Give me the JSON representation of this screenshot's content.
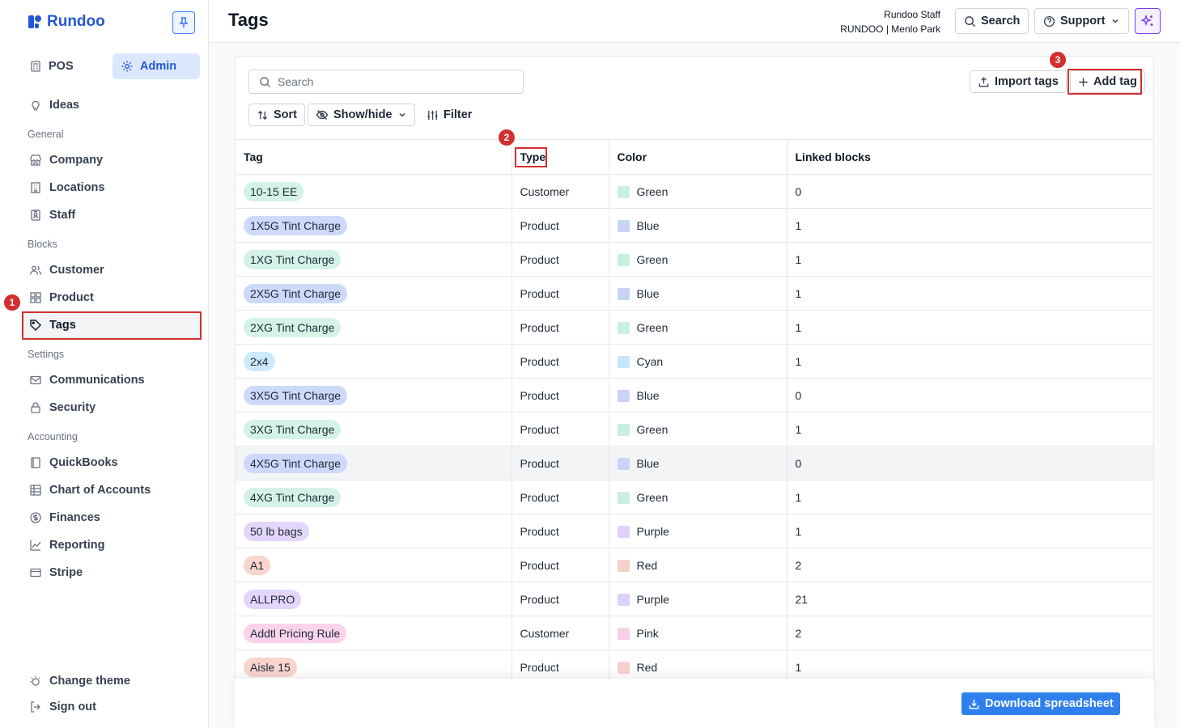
{
  "app": {
    "brand": "Rundoo"
  },
  "modes": {
    "pos": "POS",
    "admin": "Admin"
  },
  "sidebar": {
    "ideas": "Ideas",
    "sections": {
      "general": "General",
      "blocks": "Blocks",
      "settings": "Settings",
      "accounting": "Accounting"
    },
    "items": {
      "company": "Company",
      "locations": "Locations",
      "staff": "Staff",
      "customer": "Customer",
      "product": "Product",
      "tags": "Tags",
      "communications": "Communications",
      "security": "Security",
      "quickbooks": "QuickBooks",
      "chart_of_accounts": "Chart of Accounts",
      "finances": "Finances",
      "reporting": "Reporting",
      "stripe": "Stripe"
    },
    "change_theme": "Change theme",
    "sign_out": "Sign out"
  },
  "header": {
    "title": "Tags",
    "user_name": "Rundoo Staff",
    "user_location": "RUNDOO | Menlo Park",
    "search_label": "Search",
    "support_label": "Support"
  },
  "toolbar": {
    "search_placeholder": "Search",
    "sort": "Sort",
    "show_hide": "Show/hide",
    "filter": "Filter",
    "import_tags": "Import tags",
    "add_tag": "Add tag"
  },
  "annotations": {
    "one": "1",
    "two": "2",
    "three": "3"
  },
  "table": {
    "columns": [
      "Tag",
      "Type",
      "Color",
      "Linked blocks"
    ],
    "rows": [
      {
        "tag": "10-15 EE",
        "type": "Customer",
        "color": "Green",
        "linked": "0"
      },
      {
        "tag": "1X5G Tint Charge",
        "type": "Product",
        "color": "Blue",
        "linked": "1"
      },
      {
        "tag": "1XG Tint Charge",
        "type": "Product",
        "color": "Green",
        "linked": "1"
      },
      {
        "tag": "2X5G Tint Charge",
        "type": "Product",
        "color": "Blue",
        "linked": "1"
      },
      {
        "tag": "2XG Tint Charge",
        "type": "Product",
        "color": "Green",
        "linked": "1"
      },
      {
        "tag": "2x4",
        "type": "Product",
        "color": "Cyan",
        "linked": "1"
      },
      {
        "tag": "3X5G Tint Charge",
        "type": "Product",
        "color": "Blue",
        "linked": "0"
      },
      {
        "tag": "3XG Tint Charge",
        "type": "Product",
        "color": "Green",
        "linked": "1"
      },
      {
        "tag": "4X5G Tint Charge",
        "type": "Product",
        "color": "Blue",
        "linked": "0"
      },
      {
        "tag": "4XG Tint Charge",
        "type": "Product",
        "color": "Green",
        "linked": "1"
      },
      {
        "tag": "50 lb bags",
        "type": "Product",
        "color": "Purple",
        "linked": "1"
      },
      {
        "tag": "A1",
        "type": "Product",
        "color": "Red",
        "linked": "2"
      },
      {
        "tag": "ALLPRO",
        "type": "Product",
        "color": "Purple",
        "linked": "21"
      },
      {
        "tag": "Addtl Pricing Rule",
        "type": "Customer",
        "color": "Pink",
        "linked": "2"
      },
      {
        "tag": "Aisle 15",
        "type": "Product",
        "color": "Red",
        "linked": "1"
      }
    ]
  },
  "colors": {
    "Green": {
      "pill": "#d4f3e6",
      "swatch": "#c9efdf"
    },
    "Blue": {
      "pill": "#cdd9fa",
      "swatch": "#c7d3f7"
    },
    "Cyan": {
      "pill": "#cdeafd",
      "swatch": "#c6e6fb"
    },
    "Purple": {
      "pill": "#e4d6fb",
      "swatch": "#dfd0fa"
    },
    "Red": {
      "pill": "#fad4cf",
      "swatch": "#f7d0cb"
    },
    "Pink": {
      "pill": "#fbd3ec",
      "swatch": "#f9cfe8"
    }
  },
  "footer": {
    "download": "Download spreadsheet"
  }
}
